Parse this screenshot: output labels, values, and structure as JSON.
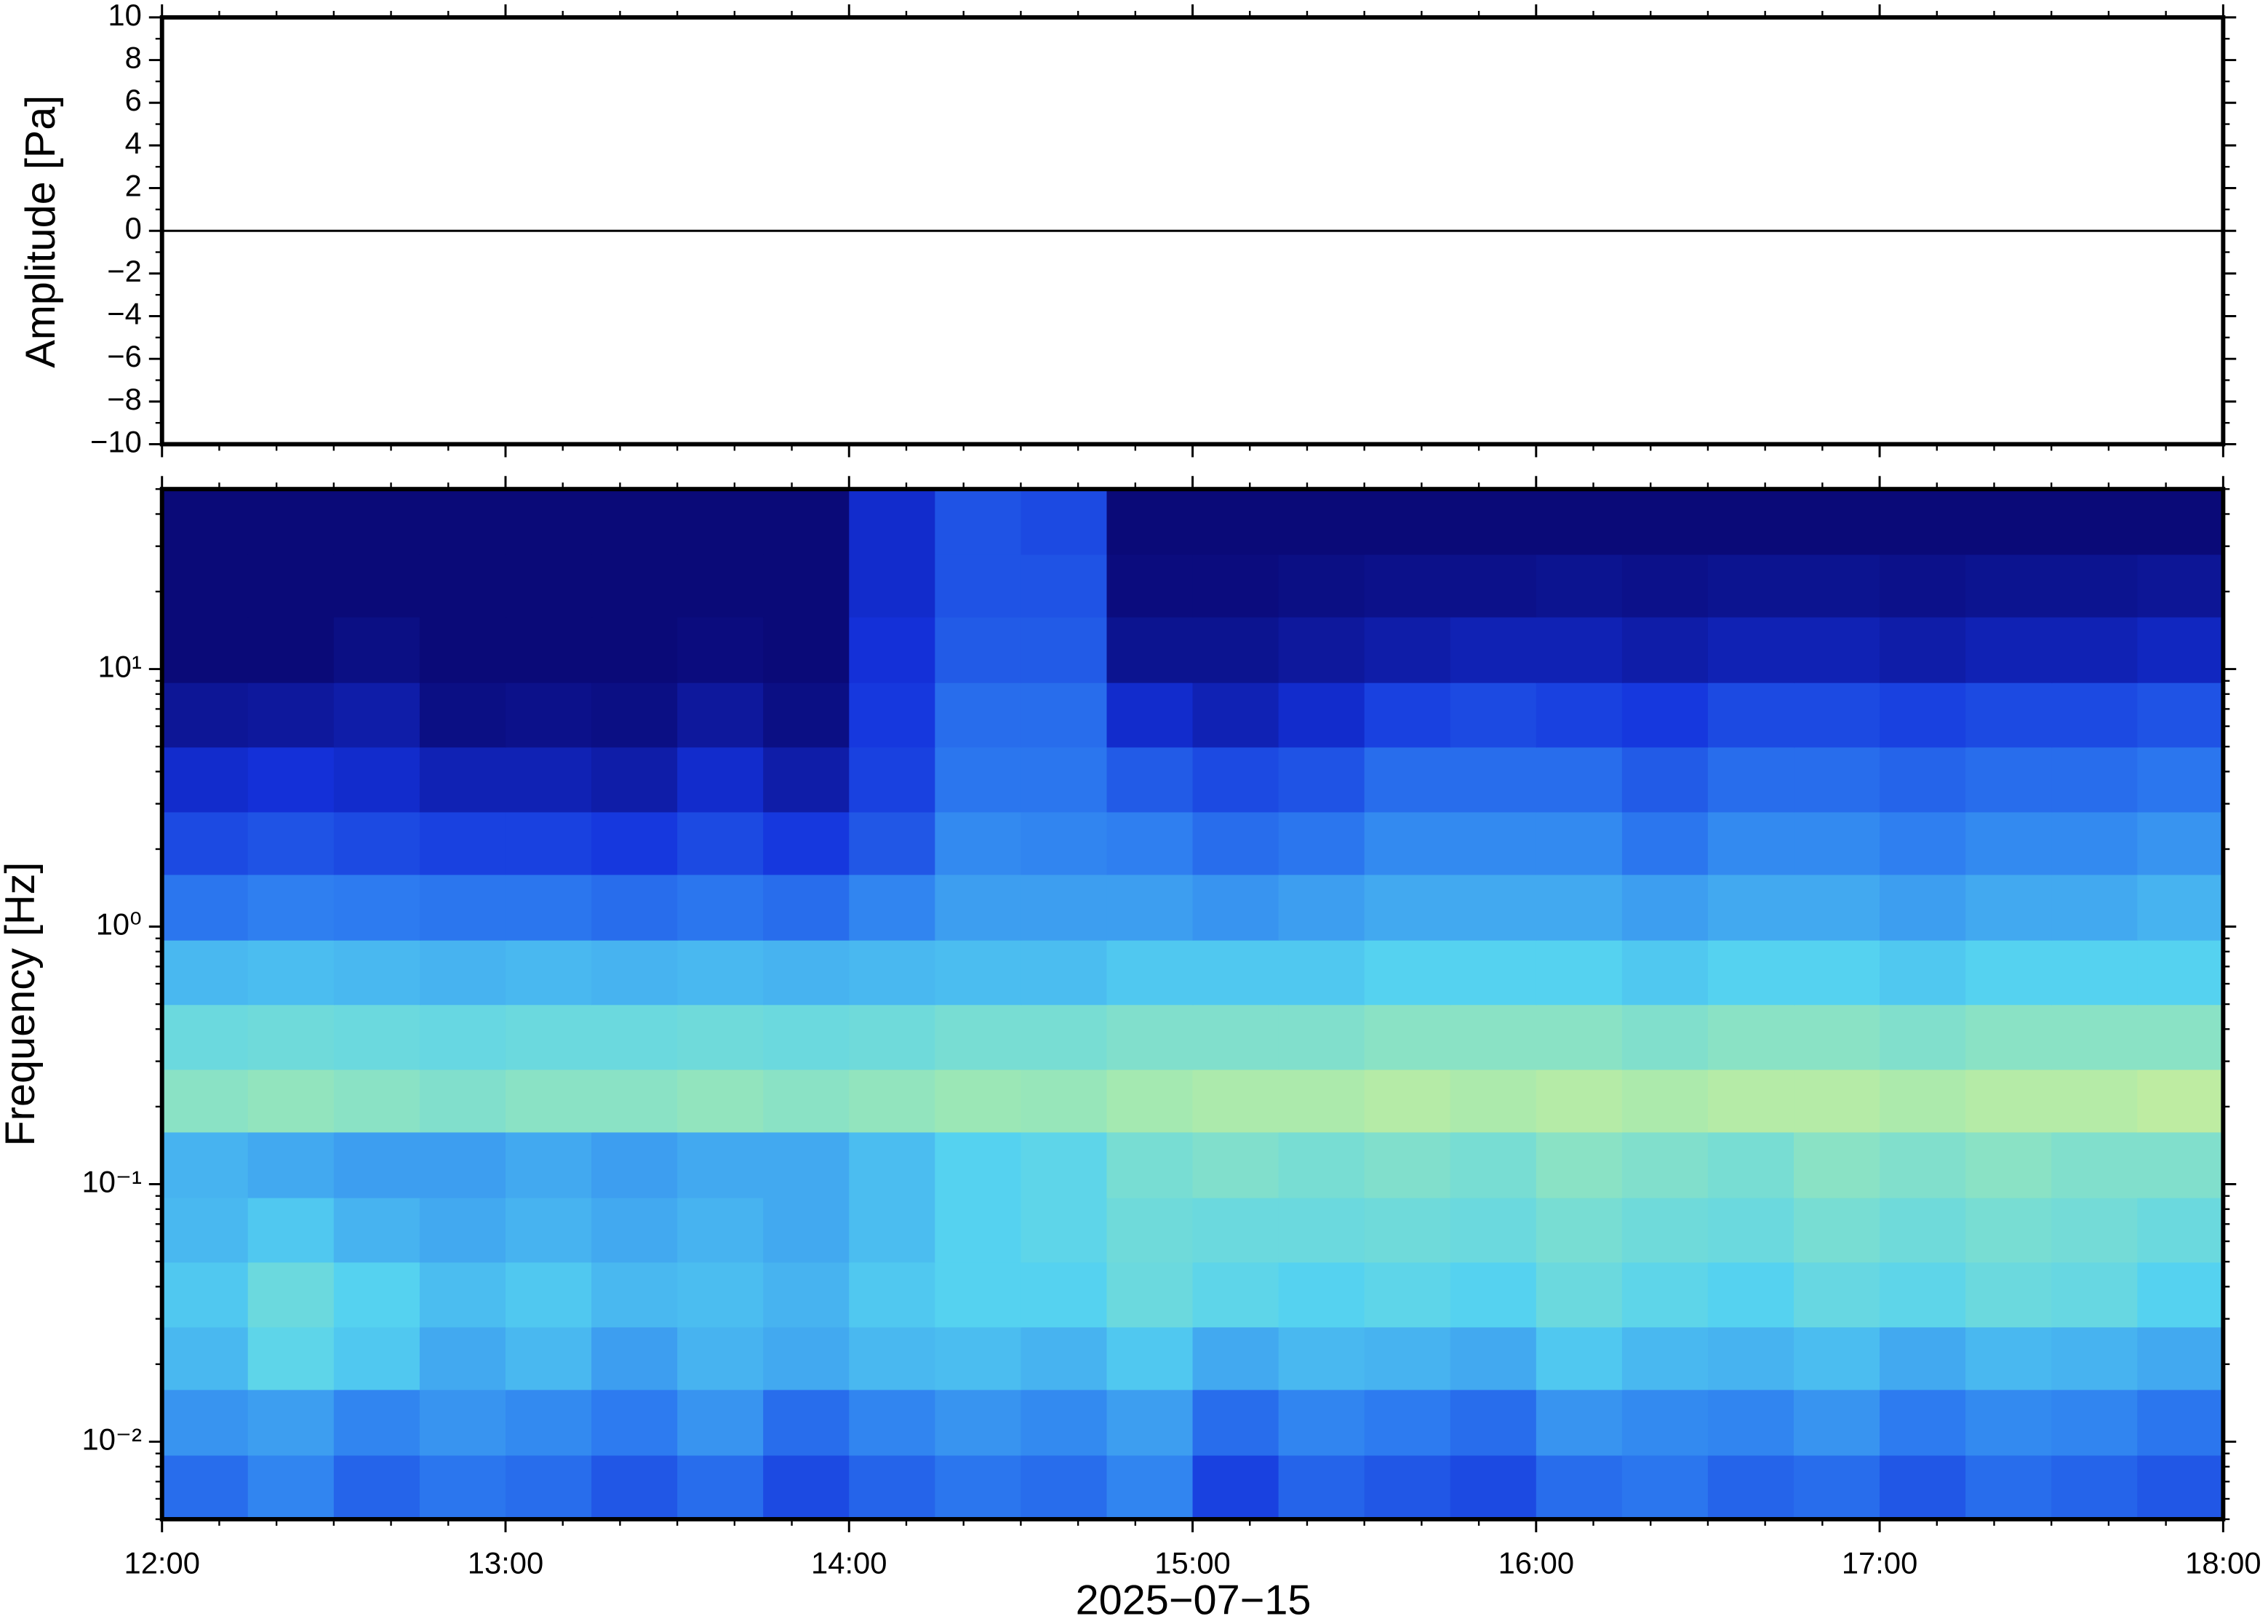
{
  "chart_data": [
    {
      "type": "line",
      "ylabel": "Amplitude [Pa]",
      "xlim": [
        12,
        18
      ],
      "xticks": [
        12,
        13,
        14,
        15,
        16,
        17,
        18
      ],
      "ylim": [
        -10,
        10
      ],
      "yticks": [
        {
          "value": -10,
          "label": "−10"
        },
        {
          "value": -8,
          "label": "−8"
        },
        {
          "value": -6,
          "label": "−6"
        },
        {
          "value": -4,
          "label": "−4"
        },
        {
          "value": -2,
          "label": "−2"
        },
        0,
        2,
        4,
        6,
        8,
        10
      ],
      "x": [
        12,
        13,
        14,
        15,
        16,
        17,
        18
      ],
      "values": [
        0,
        0,
        0,
        0,
        0,
        0,
        0
      ],
      "color": "#000000"
    },
    {
      "type": "heatmap",
      "ylabel": "Frequency [Hz]",
      "xlabel": "2025−07−15",
      "log_y": true,
      "xlim": [
        12,
        18
      ],
      "xticks": [
        {
          "value": 12,
          "label": "12:00"
        },
        {
          "value": 13,
          "label": "13:00"
        },
        {
          "value": 14,
          "label": "14:00"
        },
        {
          "value": 15,
          "label": "15:00"
        },
        {
          "value": 16,
          "label": "16:00"
        },
        {
          "value": 17,
          "label": "17:00"
        },
        {
          "value": 18,
          "label": "18:00"
        }
      ],
      "ylim": [
        0.005,
        50
      ],
      "yticks": [
        {
          "value": 0.01,
          "label": "10⁻²"
        },
        {
          "value": 0.1,
          "label": "10⁻¹"
        },
        {
          "value": 1,
          "label": "10⁰"
        },
        {
          "value": 10,
          "label": "10¹"
        }
      ],
      "xbins": [
        12,
        12.25,
        12.5,
        12.75,
        13,
        13.25,
        13.5,
        13.75,
        14,
        14.25,
        14.5,
        14.75,
        15,
        15.25,
        15.5,
        15.75,
        16,
        16.25,
        16.5,
        16.75,
        17,
        17.25,
        17.5,
        17.75,
        18
      ],
      "ybins": [
        0.005,
        0.0089,
        0.016,
        0.028,
        0.05,
        0.089,
        0.16,
        0.28,
        0.5,
        0.89,
        1.6,
        2.8,
        5,
        8.9,
        16,
        28,
        50
      ],
      "zlim": [
        0,
        100
      ],
      "colormap": [
        "#0a0a78",
        "#1432dc",
        "#2d7cf0",
        "#55d2f0",
        "#9ee8b4",
        "#e6f08c",
        "#f5b45a"
      ],
      "z": [
        [
          30,
          35,
          28,
          32,
          30,
          25,
          30,
          22,
          28,
          32,
          30,
          35,
          20,
          28,
          25,
          22,
          30,
          32,
          28,
          30,
          25,
          30,
          28,
          25
        ],
        [
          38,
          40,
          35,
          38,
          36,
          33,
          38,
          30,
          35,
          38,
          36,
          40,
          30,
          35,
          33,
          30,
          38,
          36,
          35,
          38,
          33,
          36,
          35,
          32
        ],
        [
          45,
          52,
          48,
          42,
          45,
          40,
          44,
          42,
          45,
          46,
          44,
          48,
          42,
          45,
          44,
          42,
          48,
          45,
          44,
          46,
          42,
          45,
          44,
          42
        ],
        [
          48,
          55,
          50,
          46,
          48,
          45,
          46,
          44,
          48,
          50,
          50,
          55,
          52,
          50,
          52,
          50,
          55,
          52,
          50,
          54,
          52,
          55,
          54,
          50
        ],
        [
          45,
          48,
          44,
          42,
          44,
          42,
          44,
          42,
          46,
          50,
          52,
          56,
          55,
          55,
          56,
          55,
          58,
          56,
          55,
          58,
          56,
          58,
          57,
          55
        ],
        [
          44,
          42,
          40,
          40,
          42,
          40,
          42,
          42,
          46,
          50,
          52,
          58,
          60,
          58,
          60,
          58,
          62,
          60,
          58,
          62,
          60,
          62,
          60,
          60
        ],
        [
          62,
          64,
          62,
          60,
          62,
          62,
          64,
          62,
          64,
          66,
          65,
          68,
          70,
          70,
          72,
          70,
          72,
          70,
          72,
          72,
          70,
          72,
          72,
          74
        ],
        [
          55,
          56,
          55,
          54,
          55,
          55,
          56,
          55,
          56,
          58,
          58,
          60,
          60,
          60,
          62,
          62,
          62,
          60,
          62,
          62,
          60,
          62,
          62,
          62
        ],
        [
          45,
          46,
          45,
          44,
          45,
          44,
          45,
          44,
          45,
          46,
          46,
          48,
          48,
          48,
          50,
          50,
          50,
          48,
          50,
          50,
          48,
          50,
          50,
          50
        ],
        [
          32,
          34,
          33,
          32,
          32,
          30,
          32,
          30,
          35,
          40,
          40,
          40,
          38,
          40,
          42,
          42,
          42,
          40,
          42,
          42,
          40,
          42,
          42,
          44
        ],
        [
          22,
          24,
          22,
          20,
          20,
          18,
          22,
          18,
          25,
          36,
          35,
          34,
          30,
          32,
          36,
          36,
          36,
          32,
          36,
          36,
          34,
          36,
          36,
          38
        ],
        [
          14,
          16,
          14,
          10,
          10,
          8,
          14,
          8,
          20,
          32,
          32,
          26,
          22,
          24,
          30,
          30,
          30,
          26,
          30,
          30,
          28,
          30,
          30,
          32
        ],
        [
          5,
          6,
          8,
          2,
          3,
          2,
          6,
          2,
          18,
          30,
          30,
          14,
          10,
          14,
          20,
          22,
          20,
          18,
          22,
          22,
          20,
          22,
          22,
          24
        ],
        [
          0,
          0,
          2,
          0,
          0,
          0,
          1,
          0,
          16,
          26,
          26,
          4,
          4,
          6,
          8,
          10,
          10,
          8,
          10,
          10,
          8,
          10,
          10,
          12
        ],
        [
          0,
          0,
          0,
          0,
          0,
          0,
          0,
          0,
          14,
          24,
          24,
          1,
          1,
          2,
          3,
          3,
          4,
          3,
          4,
          4,
          3,
          4,
          4,
          5
        ],
        [
          0,
          0,
          0,
          0,
          0,
          0,
          0,
          0,
          14,
          24,
          22,
          0,
          0,
          0,
          0,
          0,
          0,
          0,
          0,
          0,
          0,
          0,
          0,
          0
        ]
      ]
    }
  ]
}
